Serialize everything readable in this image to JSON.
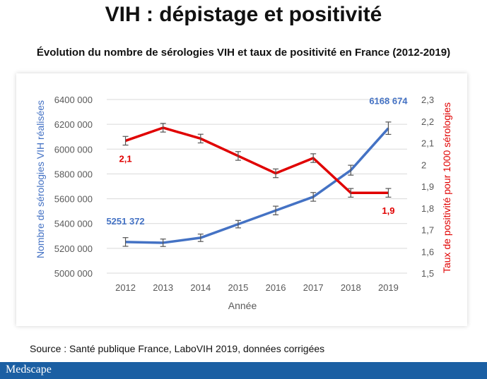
{
  "slide_title": "VIH : dépistage et positivité",
  "source": "Source : Santé publique France, LaboVIH 2019, données corrigées",
  "brand": "Medscape",
  "chart_data": {
    "type": "line",
    "title": "Évolution du nombre de sérologies VIH et taux de positivité en France (2012-2019)",
    "xlabel": "Année",
    "ylabel_left": "Nombre de sérologies VIH réalisées",
    "ylabel_right": "Taux de positivité pour 1000 sérologies",
    "x": [
      "2012",
      "2013",
      "2014",
      "2015",
      "2016",
      "2017",
      "2018",
      "2019"
    ],
    "ylim_left": [
      5000000,
      6400000
    ],
    "y_ticks_left": [
      "5000 000",
      "5200 000",
      "5400 000",
      "5600 000",
      "5800 000",
      "6000 000",
      "6200 000",
      "6400 000"
    ],
    "ylim_right": [
      1.5,
      2.3
    ],
    "y_ticks_right": [
      "1,5",
      "1,6",
      "1,7",
      "1,8",
      "1,9",
      "2",
      "2,1",
      "2,2",
      "2,3"
    ],
    "grid": "horizontal",
    "series": [
      {
        "axis": "left",
        "color": "#4472c4",
        "values": [
          5251372,
          5245000,
          5285000,
          5395000,
          5505000,
          5615000,
          5830000,
          6168674
        ],
        "error": [
          35000,
          30000,
          30000,
          30000,
          35000,
          35000,
          40000,
          50000
        ],
        "labels": [
          {
            "index": 0,
            "text": "5251 372"
          },
          {
            "index": 7,
            "text": "6168 674"
          }
        ]
      },
      {
        "axis": "right",
        "color": "#e00000",
        "values": [
          2.11,
          2.17,
          2.12,
          2.04,
          1.96,
          2.03,
          1.87,
          1.87
        ],
        "error": [
          0.02,
          0.02,
          0.02,
          0.02,
          0.02,
          0.02,
          0.02,
          0.02
        ],
        "labels": [
          {
            "index": 0,
            "text": "2,1"
          },
          {
            "index": 7,
            "text": "1,9"
          }
        ]
      }
    ]
  }
}
